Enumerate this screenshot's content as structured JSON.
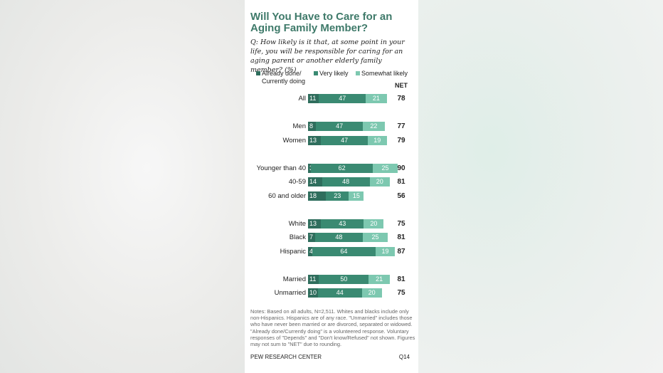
{
  "title": "Will You Have to Care for an Aging Family Member?",
  "question": "Q: How likely is it that, at some point in your life, you will be responsible for caring for an aging parent or another elderly family member? (%)",
  "colors": {
    "already": "#2f6e5d",
    "very": "#3a8a72",
    "somewhat": "#7dc8b0",
    "title": "#3f7a6a"
  },
  "net_header": "NET",
  "notes": "Notes: Based on all adults, N=2,511. Whites and blacks include only non-Hispanics. Hispanics are of any race. \"Unmarried\" includes those who have never been married or are divorced, separated or widowed. \"Already done/Currently doing\" is a volunteered response. Voluntary responses of \"Depends\" and \"Don't know/Refused\" not shown. Figures may not sum to \"NET\" due to rounding.",
  "source": "PEW RESEARCH CENTER",
  "question_id": "Q14",
  "chart_data": {
    "type": "bar",
    "stacked": true,
    "orientation": "horizontal",
    "title": "Will You Have to Care for an Aging Family Member?",
    "legend": [
      "Already done/ Currently doing",
      "Very likely",
      "Somewhat likely"
    ],
    "legend_placement": "top",
    "categories": [
      "All",
      "Men",
      "Women",
      "Younger than 40",
      "40-59",
      "60 and older",
      "White",
      "Black",
      "Hispanic",
      "Married",
      "Unmarried"
    ],
    "series": [
      {
        "name": "Already done/ Currently doing",
        "values": [
          11,
          8,
          13,
          3,
          14,
          18,
          13,
          7,
          4,
          11,
          10
        ]
      },
      {
        "name": "Very likely",
        "values": [
          47,
          47,
          47,
          62,
          48,
          23,
          43,
          48,
          64,
          50,
          44
        ]
      },
      {
        "name": "Somewhat likely",
        "values": [
          21,
          22,
          19,
          25,
          20,
          15,
          20,
          25,
          19,
          21,
          20
        ]
      }
    ],
    "net": [
      78,
      77,
      79,
      90,
      81,
      56,
      75,
      81,
      87,
      81,
      75
    ],
    "groups": [
      [
        0
      ],
      [
        1,
        2
      ],
      [
        3,
        4,
        5
      ],
      [
        6,
        7,
        8
      ],
      [
        9,
        10
      ]
    ],
    "grid": false
  }
}
